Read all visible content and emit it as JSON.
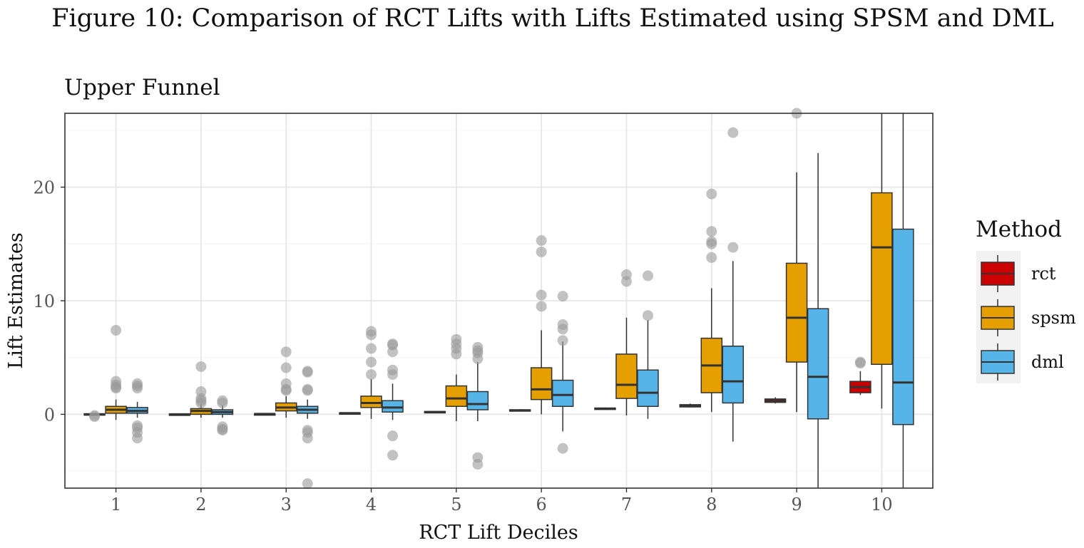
{
  "figure_title": "Figure 10: Comparison of RCT Lifts with Lifts Estimated using SPSM and DML",
  "colors": {
    "rct": "#cc0000",
    "spsm": "#e69f00",
    "dml": "#56b4e9",
    "outlier": "#9a9a9a",
    "grid": "#ebebeb",
    "box_stroke": "#333333"
  },
  "chart_data": {
    "type": "boxplot",
    "title": "Upper Funnel",
    "xlabel": "RCT Lift Deciles",
    "ylabel": "Lift Estimates",
    "categories": [
      "1",
      "2",
      "3",
      "4",
      "5",
      "6",
      "7",
      "8",
      "9",
      "10"
    ],
    "ylim": [
      -6.5,
      26.5
    ],
    "yticks": [
      0,
      10,
      20
    ],
    "grid": true,
    "legend": {
      "title": "Method",
      "placement": "right",
      "entries": [
        "rct",
        "spsm",
        "dml"
      ]
    },
    "series": [
      {
        "name": "rct",
        "boxes": [
          {
            "q1": -0.05,
            "median": 0.0,
            "q3": 0.05,
            "lower": -0.1,
            "upper": 0.1,
            "outliers": [
              -0.1,
              -0.2
            ]
          },
          {
            "q1": -0.05,
            "median": 0.0,
            "q3": 0.03,
            "lower": -0.06,
            "upper": 0.05,
            "outliers": []
          },
          {
            "q1": 0.0,
            "median": 0.03,
            "q3": 0.05,
            "lower": -0.02,
            "upper": 0.07,
            "outliers": []
          },
          {
            "q1": 0.05,
            "median": 0.1,
            "q3": 0.13,
            "lower": 0.02,
            "upper": 0.15,
            "outliers": []
          },
          {
            "q1": 0.15,
            "median": 0.2,
            "q3": 0.25,
            "lower": 0.12,
            "upper": 0.28,
            "outliers": []
          },
          {
            "q1": 0.3,
            "median": 0.35,
            "q3": 0.4,
            "lower": 0.25,
            "upper": 0.45,
            "outliers": []
          },
          {
            "q1": 0.45,
            "median": 0.5,
            "q3": 0.55,
            "lower": 0.4,
            "upper": 0.6,
            "outliers": []
          },
          {
            "q1": 0.65,
            "median": 0.75,
            "q3": 0.85,
            "lower": 0.6,
            "upper": 0.95,
            "outliers": []
          },
          {
            "q1": 1.05,
            "median": 1.2,
            "q3": 1.35,
            "lower": 0.95,
            "upper": 1.5,
            "outliers": []
          },
          {
            "q1": 1.9,
            "median": 2.4,
            "q3": 2.9,
            "lower": 1.7,
            "upper": 3.8,
            "outliers": [
              4.5,
              4.6
            ]
          }
        ]
      },
      {
        "name": "spsm",
        "boxes": [
          {
            "q1": 0.1,
            "median": 0.4,
            "q3": 0.7,
            "lower": -0.5,
            "upper": 1.3,
            "outliers": [
              7.4,
              2.9,
              2.6,
              2.4,
              2.3
            ]
          },
          {
            "q1": 0.0,
            "median": 0.3,
            "q3": 0.5,
            "lower": -0.3,
            "upper": 0.9,
            "outliers": [
              4.2,
              2.0,
              1.4,
              1.2,
              1.0
            ]
          },
          {
            "q1": 0.3,
            "median": 0.6,
            "q3": 1.0,
            "lower": -0.3,
            "upper": 1.6,
            "outliers": [
              5.5,
              4.1,
              2.7,
              2.2,
              2.1
            ]
          },
          {
            "q1": 0.6,
            "median": 1.0,
            "q3": 1.6,
            "lower": -0.4,
            "upper": 3.1,
            "outliers": [
              7.3,
              7.0,
              5.8,
              4.6,
              3.5
            ]
          },
          {
            "q1": 0.7,
            "median": 1.4,
            "q3": 2.5,
            "lower": -0.6,
            "upper": 3.5,
            "outliers": [
              6.6,
              6.2,
              5.8,
              5.3
            ]
          },
          {
            "q1": 1.3,
            "median": 2.2,
            "q3": 4.1,
            "lower": 0.0,
            "upper": 7.4,
            "outliers": [
              15.3,
              14.3,
              10.5,
              9.5
            ]
          },
          {
            "q1": 1.4,
            "median": 2.6,
            "q3": 5.3,
            "lower": -0.1,
            "upper": 8.5,
            "outliers": [
              12.3,
              11.7
            ]
          },
          {
            "q1": 1.9,
            "median": 4.3,
            "q3": 6.7,
            "lower": 0.2,
            "upper": 11.1,
            "outliers": [
              19.4,
              16.1,
              15.2,
              15.0,
              13.8
            ]
          },
          {
            "q1": 4.6,
            "median": 8.5,
            "q3": 13.3,
            "lower": 0.2,
            "upper": 21.3,
            "outliers": [
              26.5
            ]
          },
          {
            "q1": 4.4,
            "median": 14.7,
            "q3": 19.5,
            "lower": 0.5,
            "upper": 26.5,
            "outliers": []
          }
        ]
      },
      {
        "name": "dml",
        "boxes": [
          {
            "q1": 0.1,
            "median": 0.3,
            "q3": 0.6,
            "lower": -0.3,
            "upper": 1.1,
            "outliers": [
              2.7,
              2.5,
              2.3,
              -1.0,
              -1.2,
              -1.6,
              -2.1
            ]
          },
          {
            "q1": 0.0,
            "median": 0.2,
            "q3": 0.4,
            "lower": -0.3,
            "upper": 0.8,
            "outliers": [
              1.2,
              1.0,
              -1.1,
              -1.3,
              -1.4
            ]
          },
          {
            "q1": 0.1,
            "median": 0.4,
            "q3": 0.7,
            "lower": -0.4,
            "upper": 1.3,
            "outliers": [
              3.8,
              3.7,
              2.2,
              2.1,
              -1.4,
              -1.6,
              -2.1,
              -6.1
            ]
          },
          {
            "q1": 0.2,
            "median": 0.6,
            "q3": 1.2,
            "lower": -0.5,
            "upper": 2.7,
            "outliers": [
              6.2,
              6.1,
              5.5,
              3.9,
              3.5,
              -1.9,
              -3.6
            ]
          },
          {
            "q1": 0.4,
            "median": 0.9,
            "q3": 2.0,
            "lower": -0.6,
            "upper": 4.6,
            "outliers": [
              5.9,
              5.6,
              5.4,
              4.9,
              -3.8,
              -4.4
            ]
          },
          {
            "q1": 0.7,
            "median": 1.7,
            "q3": 3.0,
            "lower": -1.5,
            "upper": 6.4,
            "outliers": [
              10.4,
              7.9,
              7.5,
              6.5,
              -3.0
            ]
          },
          {
            "q1": 0.7,
            "median": 1.9,
            "q3": 3.9,
            "lower": -0.4,
            "upper": 8.3,
            "outliers": [
              12.2,
              8.7
            ]
          },
          {
            "q1": 1.0,
            "median": 2.9,
            "q3": 6.0,
            "lower": -2.4,
            "upper": 13.5,
            "outliers": [
              24.8,
              14.7
            ]
          },
          {
            "q1": -0.4,
            "median": 3.3,
            "q3": 9.3,
            "lower": -6.5,
            "upper": 23.0,
            "outliers": []
          },
          {
            "q1": -0.9,
            "median": 2.8,
            "q3": 16.3,
            "lower": -6.5,
            "upper": 26.5,
            "outliers": []
          }
        ]
      }
    ]
  }
}
